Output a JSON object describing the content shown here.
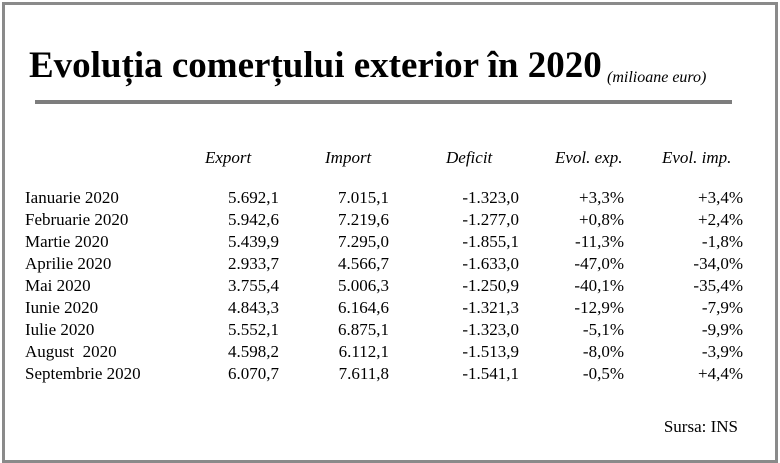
{
  "title": "Evoluția comerțului exterior în 2020",
  "subtitle": "(milioane euro)",
  "columns": [
    "Export",
    "Import",
    "Deficit",
    "Evol. exp.",
    "Evol. imp."
  ],
  "rows": [
    {
      "month": "Ianuarie 2020",
      "export": "5.692,1",
      "import": "7.015,1",
      "deficit": "-1.323,0",
      "evol_exp": "+3,3%",
      "evol_imp": "+3,4%"
    },
    {
      "month": "Februarie 2020",
      "export": "5.942,6",
      "import": "7.219,6",
      "deficit": "-1.277,0",
      "evol_exp": "+0,8%",
      "evol_imp": "+2,4%"
    },
    {
      "month": "Martie 2020",
      "export": "5.439,9",
      "import": "7.295,0",
      "deficit": "-1.855,1",
      "evol_exp": "-11,3%",
      "evol_imp": "-1,8%"
    },
    {
      "month": "Aprilie 2020",
      "export": "2.933,7",
      "import": "4.566,7",
      "deficit": "-1.633,0",
      "evol_exp": "-47,0%",
      "evol_imp": "-34,0%"
    },
    {
      "month": "Mai 2020",
      "export": "3.755,4",
      "import": "5.006,3",
      "deficit": "-1.250,9",
      "evol_exp": "-40,1%",
      "evol_imp": "-35,4%"
    },
    {
      "month": "Iunie 2020",
      "export": "4.843,3",
      "import": "6.164,6",
      "deficit": "-1.321,3",
      "evol_exp": "-12,9%",
      "evol_imp": "-7,9%"
    },
    {
      "month": "Iulie 2020",
      "export": "5.552,1",
      "import": "6.875,1",
      "deficit": "-1.323,0",
      "evol_exp": "-5,1%",
      "evol_imp": "-9,9%"
    },
    {
      "month": "August  2020",
      "export": "4.598,2",
      "import": "6.112,1",
      "deficit": "-1.513,9",
      "evol_exp": "-8,0%",
      "evol_imp": "-3,9%"
    },
    {
      "month": "Septembrie 2020",
      "export": "6.070,7",
      "import": "7.611,8",
      "deficit": "-1.541,1",
      "evol_exp": "-0,5%",
      "evol_imp": "+4,4%"
    }
  ],
  "source": "Sursa: INS",
  "colors": {
    "frame": "#8a8a8a",
    "rule": "#7d7d7d",
    "text": "#000000"
  }
}
